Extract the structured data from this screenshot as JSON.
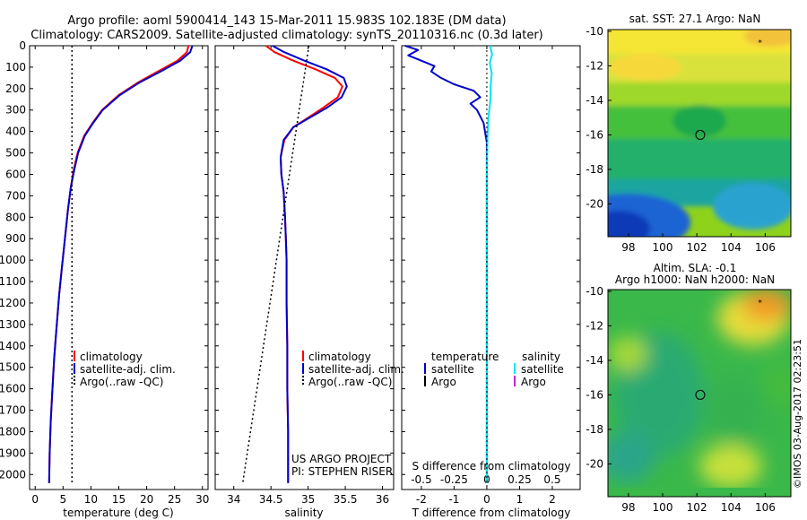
{
  "header": {
    "line1": "Argo profile: aoml 5900414_143 15-Mar-2011 15.983S 102.183E (DM data)",
    "line2": "Climatology: CARS2009. Satellite-adjusted climatology: synTS_20110316.nc (0.3d later)"
  },
  "colors": {
    "climatology": "#ff0000",
    "satellite": "#0000cc",
    "argo": "#000000",
    "sal_satellite": "#00e5ee",
    "sal_argo": "#cc22cc"
  },
  "chart_data": [
    {
      "type": "line",
      "xlabel": "temperature (deg C)",
      "ylabel": "",
      "xlim": [
        -1,
        31
      ],
      "ylim": [
        2070,
        0
      ],
      "xticks": [
        0,
        5,
        10,
        15,
        20,
        25,
        30
      ],
      "yticks": [
        0,
        100,
        200,
        300,
        400,
        500,
        600,
        700,
        800,
        900,
        1000,
        1100,
        1200,
        1300,
        1400,
        1500,
        1600,
        1700,
        1800,
        1900,
        2000
      ],
      "legend": [
        "climatology",
        "satellite-adj. clim.",
        "Argo(..raw -QC)"
      ],
      "series": [
        {
          "name": "climatology",
          "color": "#ff0000",
          "x": [
            27.5,
            27.2,
            25.5,
            22.0,
            18.5,
            15.0,
            12.0,
            10.3,
            8.8,
            7.6,
            6.9,
            6.4,
            5.9,
            5.5,
            5.1,
            4.7,
            4.3,
            4.0,
            3.7,
            3.4,
            3.1,
            2.8,
            2.6,
            2.5
          ],
          "y": [
            0,
            30,
            70,
            120,
            170,
            230,
            300,
            360,
            420,
            500,
            580,
            660,
            760,
            860,
            960,
            1060,
            1160,
            1260,
            1360,
            1460,
            1600,
            1750,
            1900,
            2040
          ]
        },
        {
          "name": "satellite-adj. clim.",
          "color": "#0000cc",
          "x": [
            28.2,
            27.8,
            26.0,
            22.5,
            18.8,
            15.2,
            12.1,
            10.4,
            8.9,
            7.7,
            7.0,
            6.4,
            5.9,
            5.5,
            5.1,
            4.7,
            4.3,
            4.0,
            3.7,
            3.4,
            3.1,
            2.8,
            2.6,
            2.5
          ],
          "y": [
            0,
            30,
            70,
            120,
            170,
            230,
            300,
            360,
            420,
            500,
            580,
            660,
            760,
            860,
            960,
            1060,
            1160,
            1260,
            1360,
            1460,
            1600,
            1750,
            1900,
            2040
          ]
        },
        {
          "name": "Argo(..raw -QC)",
          "color": "#000000",
          "dotted": true,
          "x": [
            6.6,
            6.6
          ],
          "y": [
            0,
            2040
          ]
        }
      ]
    },
    {
      "type": "line",
      "xlabel": "salinity",
      "ylabel": "",
      "xlim": [
        33.75,
        36.15
      ],
      "ylim": [
        2070,
        0
      ],
      "xticks": [
        34,
        34.5,
        35,
        35.5,
        36
      ],
      "legend": [
        "climatology",
        "satellite-adj. clim.",
        "Argo(..raw -QC)"
      ],
      "annotations": [
        "US ARGO PROJECT",
        "PI: STEPHEN RISER"
      ],
      "series": [
        {
          "name": "climatology",
          "color": "#ff0000",
          "x": [
            34.43,
            34.55,
            34.8,
            35.1,
            35.36,
            35.46,
            35.4,
            35.2,
            34.98,
            34.8,
            34.68,
            34.63,
            34.64,
            34.67,
            34.69,
            34.7,
            34.71,
            34.71,
            34.72,
            34.72,
            34.73,
            34.73,
            34.73
          ],
          "y": [
            0,
            30,
            70,
            110,
            150,
            190,
            240,
            290,
            340,
            380,
            440,
            520,
            600,
            680,
            800,
            900,
            1000,
            1200,
            1400,
            1600,
            1800,
            1950,
            2040
          ]
        },
        {
          "name": "satellite-adj. clim.",
          "color": "#0000cc",
          "x": [
            34.52,
            34.68,
            34.95,
            35.25,
            35.48,
            35.52,
            35.45,
            35.25,
            35.0,
            34.8,
            34.67,
            34.63,
            34.64,
            34.67,
            34.69,
            34.7,
            34.71,
            34.71,
            34.72,
            34.72,
            34.73,
            34.73,
            34.73
          ],
          "y": [
            0,
            30,
            70,
            110,
            150,
            190,
            240,
            290,
            340,
            380,
            440,
            520,
            600,
            680,
            800,
            900,
            1000,
            1200,
            1400,
            1600,
            1800,
            1950,
            2040
          ]
        },
        {
          "name": "Argo(..raw -QC)",
          "color": "#000000",
          "dotted": true,
          "x": [
            35.01,
            34.12
          ],
          "y": [
            0,
            2040
          ]
        }
      ]
    },
    {
      "type": "line",
      "xlabel": "T difference from climatology",
      "x2label": "S difference from climatology",
      "ylabel": "",
      "xlim": [
        -2.6,
        2.85
      ],
      "x2lim": [
        -0.65,
        0.7125
      ],
      "ylim": [
        2070,
        0
      ],
      "xticks": [
        -2,
        -1,
        0,
        1,
        2
      ],
      "x2ticks": [
        -0.5,
        -0.25,
        0,
        0.25,
        0.5
      ],
      "x2ticklabels": [
        "-0.5",
        "-0.25",
        "0",
        "0.25",
        "0.5"
      ],
      "legend_titles": [
        "temperature",
        "salinity"
      ],
      "legend": [
        "satellite",
        "Argo",
        "satellite",
        "Argo"
      ],
      "series": [
        {
          "name": "satellite",
          "color": "#0000cc",
          "x": [
            -2.5,
            -2.1,
            -2.4,
            -2.0,
            -1.6,
            -1.7,
            -1.4,
            -1.0,
            -0.4,
            -0.2,
            -0.5,
            -0.3,
            -0.1,
            0.0,
            0.0,
            0.0,
            0.0,
            0.0,
            0.0
          ],
          "y": [
            0,
            20,
            45,
            70,
            95,
            120,
            150,
            180,
            210,
            240,
            270,
            300,
            360,
            450,
            600,
            900,
            1200,
            1600,
            2040
          ]
        },
        {
          "name": "satellite",
          "color": "#00e5ee",
          "x": [
            0.1,
            0.16,
            0.09,
            0.15,
            0.12,
            0.11,
            0.05,
            0.02,
            0.0,
            0.0,
            0.0
          ],
          "y": [
            0,
            40,
            80,
            130,
            180,
            250,
            330,
            420,
            600,
            1200,
            2040
          ]
        }
      ]
    }
  ],
  "map_sst": {
    "title": "sat. SST: 27.1  Argo: NaN",
    "yticks": [
      "-10",
      "-12",
      "-14",
      "-16",
      "-18",
      "-20"
    ],
    "xticks": [
      "98",
      "100",
      "102",
      "104",
      "106"
    ],
    "lon_range": [
      96.8,
      107.5
    ],
    "lat_range": [
      -21.9,
      -9.9
    ],
    "argo_pos": {
      "lon": 102.2,
      "lat": -16.0
    },
    "star_pos": {
      "lon": 105.7,
      "lat": -10.6
    }
  },
  "map_sla": {
    "title1": "Altim. SLA: -0.1",
    "title2": "Argo h1000: NaN h2000: NaN",
    "yticks": [
      "-10",
      "-12",
      "-14",
      "-16",
      "-18",
      "-20"
    ],
    "xticks": [
      "98",
      "100",
      "102",
      "104",
      "106"
    ],
    "lon_range": [
      96.8,
      107.5
    ],
    "lat_range": [
      -21.9,
      -9.9
    ],
    "argo_pos": {
      "lon": 102.2,
      "lat": -16.0
    },
    "star_pos": {
      "lon": 105.7,
      "lat": -10.6
    }
  },
  "stamp": "©IMOS 03-Aug-2017 02:23:51"
}
